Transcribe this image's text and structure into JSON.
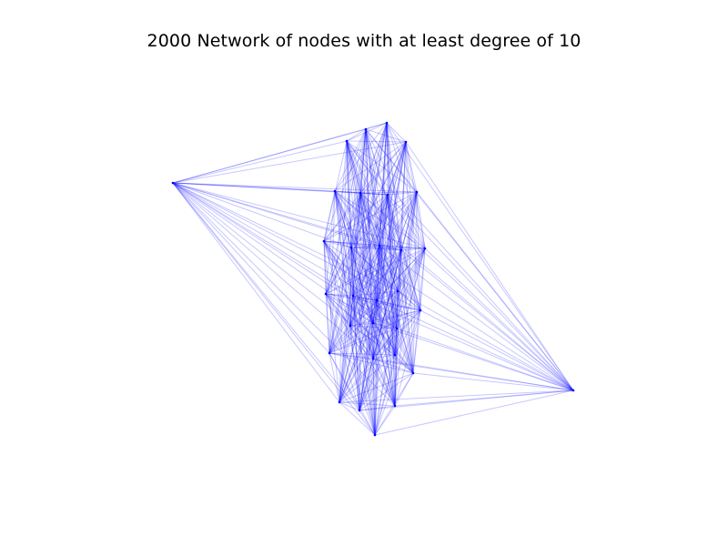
{
  "figure": {
    "title": "2000 Network of nodes with at least degree of 10",
    "edge_color": "#0000ff",
    "node_color": "#0000ff",
    "background": "#ffffff"
  }
}
